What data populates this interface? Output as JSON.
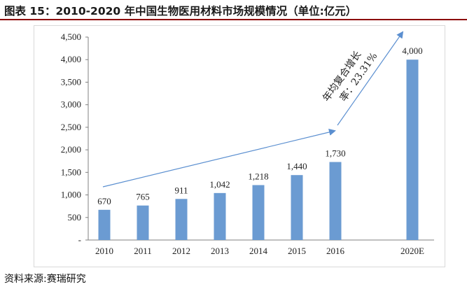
{
  "title": "图表 15：2010-2020 年中国生物医用材料市场规模情况（单位:亿元）",
  "source": "资料来源:赛瑞研究",
  "colors": {
    "bar": "#6b9bd2",
    "arrow": "#5b8fd0",
    "title_rule": "#8b0000"
  },
  "chart_data": {
    "type": "bar",
    "title": "",
    "xlabel": "",
    "ylabel": "",
    "categories": [
      "2010",
      "2011",
      "2012",
      "2013",
      "2014",
      "2015",
      "2016",
      "2020E"
    ],
    "values": [
      670,
      765,
      911,
      1042,
      1218,
      1440,
      1730,
      4000
    ],
    "value_labels": [
      "670",
      "765",
      "911",
      "1,042",
      "1,218",
      "1,440",
      "1,730",
      "4,000"
    ],
    "ylim": [
      0,
      4500
    ],
    "yticks": [
      "-",
      "500",
      "1,000",
      "1,500",
      "2,000",
      "2,500",
      "3,000",
      "3,500",
      "4,000",
      "4,500"
    ],
    "grid": false,
    "legend": "none",
    "annotation": {
      "line1": "年均复合增长",
      "line2": "率：23.31%"
    }
  }
}
